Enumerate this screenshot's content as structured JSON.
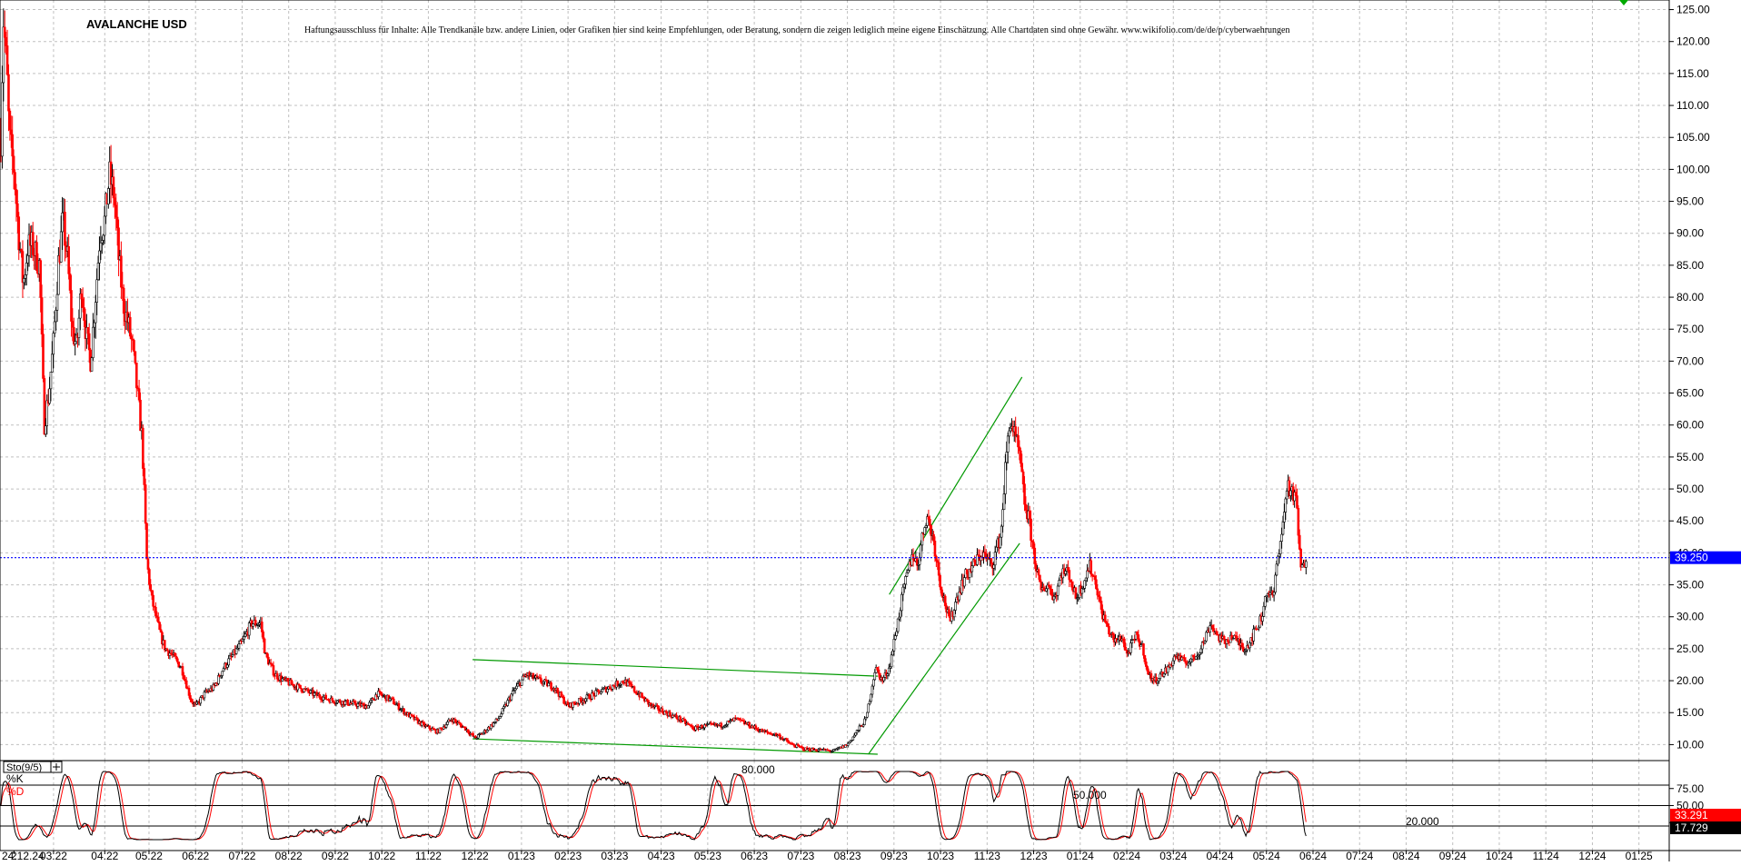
{
  "chart_data": {
    "type": "candlestick",
    "title": "AVALANCHE USD",
    "disclaimer": "Haftungsausschluss für Inhalte: Alle Trendkanäle bzw. andere Linien, oder Grafiken hier sind keine Empfehlungen, oder Beratung, sondern die zeigen lediglich meine eigene Einschätzung. Alle Chartdaten sind ohne Gewähr. www.wikifolio.com/de/de/p/cyberwaehrungen",
    "colors": {
      "up": "#000000",
      "down": "#ff0000",
      "trendline": "#009900",
      "current_price_line": "#0000ff",
      "grid": "#c0c0c0"
    },
    "y_axis": {
      "range": [
        7.5,
        126.5
      ],
      "ticks": [
        "125.00",
        "120.00",
        "115.00",
        "110.00",
        "105.00",
        "100.00",
        "95.00",
        "90.00",
        "85.00",
        "80.00",
        "75.00",
        "70.00",
        "65.00",
        "60.00",
        "55.00",
        "50.00",
        "45.00",
        "40.00",
        "35.00",
        "30.00",
        "25.00",
        "20.00",
        "15.00",
        "10.00"
      ],
      "tick_values": [
        125,
        120,
        115,
        110,
        105,
        100,
        95,
        90,
        85,
        80,
        75,
        70,
        65,
        60,
        55,
        50,
        45,
        40,
        35,
        30,
        25,
        20,
        15,
        10
      ]
    },
    "x_axis": {
      "ticks": [
        "24.12.24",
        "2",
        "03.22",
        "04.22",
        "05.22",
        "06.22",
        "07.22",
        "08.22",
        "09.22",
        "10.22",
        "11.22",
        "12.22",
        "01.23",
        "02.23",
        "03.23",
        "04.23",
        "05.23",
        "06.23",
        "07.23",
        "08.23",
        "09.23",
        "10.23",
        "11.23",
        "12.23",
        "01.24",
        "02.24",
        "03.24",
        "04.24",
        "05.24",
        "06.24",
        "07.24",
        "08.24",
        "09.24",
        "10.24",
        "11.24",
        "12.24",
        "01.25"
      ],
      "tick_index": [
        0,
        2.2,
        3.05,
        4.15,
        5.1,
        6.1,
        7.1,
        8.1,
        9.1,
        10.1,
        11.1,
        12.1,
        13.1,
        14.1,
        15.1,
        16.1,
        17.1,
        18.1,
        19.1,
        20.1,
        21.1,
        22.1,
        23.1,
        24.1,
        25.1,
        26.1,
        27.1,
        28.1,
        29.1,
        30.1,
        31.1,
        32.1,
        33.1,
        34.1,
        35.1,
        36.1,
        37.1
      ],
      "range": [
        1.9,
        37.75
      ]
    },
    "current_price": {
      "value": 39.25,
      "label": "39.250"
    },
    "price_anchors": [
      [
        1.92,
        105
      ],
      [
        1.97,
        124
      ],
      [
        2.05,
        115
      ],
      [
        2.1,
        105
      ],
      [
        2.2,
        100
      ],
      [
        2.3,
        90
      ],
      [
        2.4,
        82
      ],
      [
        2.5,
        88
      ],
      [
        2.6,
        88
      ],
      [
        2.75,
        85
      ],
      [
        2.85,
        60
      ],
      [
        2.95,
        65
      ],
      [
        3.05,
        73
      ],
      [
        3.15,
        85
      ],
      [
        3.25,
        92
      ],
      [
        3.35,
        86
      ],
      [
        3.45,
        75
      ],
      [
        3.55,
        72
      ],
      [
        3.65,
        82
      ],
      [
        3.75,
        74
      ],
      [
        3.85,
        70
      ],
      [
        3.95,
        80
      ],
      [
        4.05,
        90
      ],
      [
        4.15,
        92
      ],
      [
        4.25,
        99
      ],
      [
        4.35,
        96
      ],
      [
        4.45,
        86
      ],
      [
        4.55,
        79
      ],
      [
        4.65,
        76
      ],
      [
        4.75,
        72
      ],
      [
        4.85,
        65
      ],
      [
        4.95,
        58
      ],
      [
        5.0,
        49
      ],
      [
        5.05,
        39
      ],
      [
        5.15,
        33
      ],
      [
        5.25,
        30
      ],
      [
        5.35,
        27
      ],
      [
        5.45,
        25
      ],
      [
        5.6,
        24
      ],
      [
        5.8,
        22
      ],
      [
        6.0,
        17
      ],
      [
        6.1,
        16
      ],
      [
        6.3,
        18
      ],
      [
        6.5,
        19
      ],
      [
        6.7,
        22
      ],
      [
        6.9,
        24
      ],
      [
        7.1,
        26
      ],
      [
        7.3,
        29
      ],
      [
        7.5,
        29
      ],
      [
        7.6,
        24
      ],
      [
        7.8,
        21
      ],
      [
        8.0,
        20
      ],
      [
        8.3,
        19
      ],
      [
        8.6,
        18
      ],
      [
        9.0,
        17
      ],
      [
        9.4,
        16.5
      ],
      [
        9.8,
        16
      ],
      [
        10.0,
        18
      ],
      [
        10.3,
        17
      ],
      [
        10.6,
        15
      ],
      [
        11.0,
        13
      ],
      [
        11.3,
        12
      ],
      [
        11.6,
        14
      ],
      [
        11.9,
        12.5
      ],
      [
        12.1,
        11
      ],
      [
        12.3,
        12
      ],
      [
        12.6,
        14
      ],
      [
        12.9,
        18
      ],
      [
        13.2,
        21
      ],
      [
        13.5,
        20
      ],
      [
        13.8,
        19
      ],
      [
        14.1,
        16
      ],
      [
        14.4,
        17
      ],
      [
        14.7,
        18
      ],
      [
        15.0,
        19
      ],
      [
        15.3,
        20
      ],
      [
        15.6,
        18
      ],
      [
        15.9,
        16
      ],
      [
        16.2,
        15
      ],
      [
        16.5,
        14
      ],
      [
        16.8,
        12.5
      ],
      [
        17.1,
        13
      ],
      [
        17.4,
        13
      ],
      [
        17.7,
        14
      ],
      [
        18.0,
        13
      ],
      [
        18.3,
        12
      ],
      [
        18.6,
        11.5
      ],
      [
        18.9,
        10
      ],
      [
        19.2,
        9.3
      ],
      [
        19.5,
        9.2
      ],
      [
        19.8,
        9.0
      ],
      [
        20.1,
        10
      ],
      [
        20.3,
        12
      ],
      [
        20.5,
        14
      ],
      [
        20.6,
        18
      ],
      [
        20.7,
        22
      ],
      [
        20.85,
        20
      ],
      [
        21.0,
        22
      ],
      [
        21.1,
        26
      ],
      [
        21.3,
        34
      ],
      [
        21.5,
        40
      ],
      [
        21.6,
        38
      ],
      [
        21.8,
        46
      ],
      [
        21.95,
        42
      ],
      [
        22.1,
        35
      ],
      [
        22.3,
        29
      ],
      [
        22.45,
        33
      ],
      [
        22.6,
        36
      ],
      [
        22.8,
        38
      ],
      [
        23.0,
        40
      ],
      [
        23.2,
        38
      ],
      [
        23.4,
        43
      ],
      [
        23.5,
        54
      ],
      [
        23.6,
        61
      ],
      [
        23.7,
        58
      ],
      [
        23.8,
        55
      ],
      [
        23.9,
        48
      ],
      [
        24.0,
        45
      ],
      [
        24.1,
        40
      ],
      [
        24.25,
        34
      ],
      [
        24.4,
        35
      ],
      [
        24.55,
        33
      ],
      [
        24.7,
        37
      ],
      [
        24.85,
        37
      ],
      [
        25.0,
        33
      ],
      [
        25.15,
        35
      ],
      [
        25.3,
        38
      ],
      [
        25.45,
        35
      ],
      [
        25.55,
        31
      ],
      [
        25.7,
        28
      ],
      [
        25.85,
        26
      ],
      [
        26.0,
        27
      ],
      [
        26.1,
        24
      ],
      [
        26.3,
        27
      ],
      [
        26.45,
        25
      ],
      [
        26.55,
        21
      ],
      [
        26.7,
        20
      ],
      [
        26.85,
        21
      ],
      [
        27.0,
        22
      ],
      [
        27.15,
        24
      ],
      [
        27.3,
        23
      ],
      [
        27.45,
        23
      ],
      [
        27.6,
        24
      ],
      [
        27.75,
        26
      ],
      [
        27.9,
        29
      ],
      [
        28.05,
        27
      ],
      [
        28.2,
        26
      ],
      [
        28.35,
        27
      ],
      [
        28.5,
        26
      ],
      [
        28.65,
        25
      ],
      [
        28.8,
        27
      ],
      [
        29.0,
        30
      ],
      [
        29.1,
        34
      ],
      [
        29.25,
        33
      ],
      [
        29.35,
        40
      ],
      [
        29.45,
        44
      ],
      [
        29.55,
        51
      ],
      [
        29.65,
        49
      ],
      [
        29.75,
        48
      ],
      [
        29.8,
        41
      ],
      [
        29.85,
        37
      ],
      [
        29.9,
        38
      ],
      [
        29.95,
        39.25
      ]
    ],
    "trendlines": [
      {
        "x1": 12.05,
        "y1": 23.3,
        "x2": 20.75,
        "y2": 20.7
      },
      {
        "x1": 12.05,
        "y1": 10.9,
        "x2": 20.75,
        "y2": 8.5
      },
      {
        "x1": 20.55,
        "y1": 8.5,
        "x2": 23.8,
        "y2": 41.5
      },
      {
        "x1": 21.0,
        "y1": 33.5,
        "x2": 23.85,
        "y2": 67.5
      }
    ],
    "stochastic": {
      "label": "Sto(9/5)",
      "legend": [
        "%K",
        "%D"
      ],
      "levels": [
        80,
        50,
        20
      ],
      "level_labels": [
        "80.000",
        "50.000",
        "20.000"
      ],
      "y_ticks": [
        "75.00",
        "50.00",
        "25.00"
      ],
      "y_tick_values": [
        75,
        50,
        25
      ],
      "k_label": "33.291",
      "d_label": "17.729",
      "k_value": 33.291,
      "d_value": 17.729
    }
  }
}
